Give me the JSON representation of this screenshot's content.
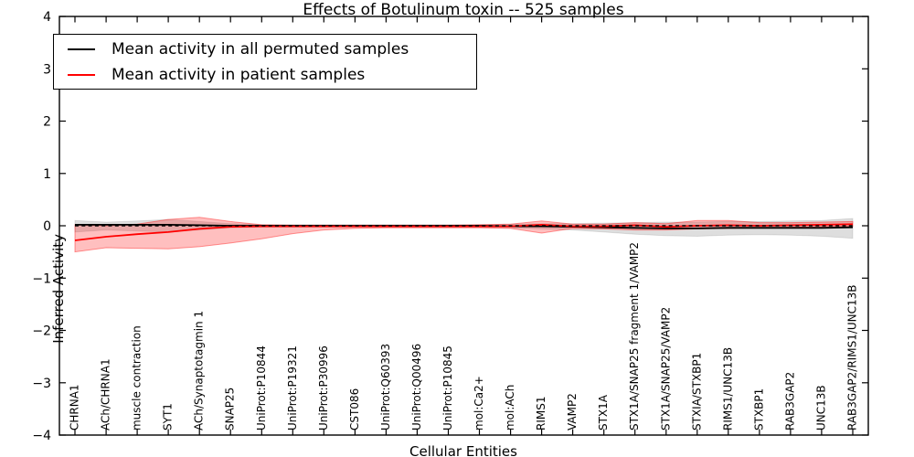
{
  "chart_data": {
    "type": "line",
    "title": "Effects of Botulinum toxin -- 525 samples",
    "xlabel": "Cellular Entities",
    "ylabel": "Inferred Activity",
    "ylim": [
      -4,
      4
    ],
    "yticks": [
      4,
      3,
      2,
      1,
      0,
      -1,
      -2,
      -3,
      -4
    ],
    "grid": false,
    "legend_position": "upper-left",
    "zero_reference_line": {
      "y": 0,
      "style": "dashed",
      "color": "#000000"
    },
    "categories": [
      "CHRNA1",
      "ACh/CHRNA1",
      "muscle contraction",
      "SYT1",
      "ACh/Synaptotagmin 1",
      "SNAP25",
      "UniProt:P10844",
      "UniProt:P19321",
      "UniProt:P30996",
      "CST086",
      "UniProt:Q60393",
      "UniProt:Q00496",
      "UniProt:P10845",
      "mol:Ca2+",
      "mol:ACh",
      "RIMS1",
      "VAMP2",
      "STX1A",
      "STX1A/SNAP25 fragment 1/VAMP2",
      "STX1A/SNAP25/VAMP2",
      "STXIA/STXBP1",
      "RIMS1/UNC13B",
      "STXBP1",
      "RAB3GAP2",
      "UNC13B",
      "RAB3GAP2/RIMS1/UNC13B"
    ],
    "series": [
      {
        "name": "Mean activity in all permuted samples",
        "color": "#000000",
        "band_fill": "rgba(0,0,0,0.13)",
        "band_stroke": "rgba(0,0,0,0.10)",
        "values": [
          0.02,
          0.02,
          0.02,
          0.02,
          0.01,
          0.0,
          0.0,
          0.0,
          0.0,
          0.0,
          0.0,
          0.0,
          0.0,
          0.0,
          -0.01,
          -0.01,
          -0.02,
          -0.03,
          -0.04,
          -0.05,
          -0.05,
          -0.04,
          -0.04,
          -0.04,
          -0.04,
          -0.03
        ],
        "band_upper": [
          0.1,
          0.07,
          0.09,
          0.12,
          0.08,
          0.04,
          0.02,
          0.02,
          0.02,
          0.02,
          0.02,
          0.02,
          0.02,
          0.02,
          0.03,
          0.04,
          0.04,
          0.05,
          0.06,
          0.07,
          0.07,
          0.08,
          0.08,
          0.09,
          0.1,
          0.14
        ],
        "band_lower": [
          -0.12,
          -0.08,
          -0.1,
          -0.12,
          -0.08,
          -0.04,
          -0.03,
          -0.03,
          -0.03,
          -0.03,
          -0.03,
          -0.03,
          -0.03,
          -0.03,
          -0.04,
          -0.06,
          -0.08,
          -0.12,
          -0.16,
          -0.19,
          -0.2,
          -0.18,
          -0.17,
          -0.18,
          -0.2,
          -0.24
        ]
      },
      {
        "name": "Mean activity in patient samples",
        "color": "#ff0000",
        "band_fill": "rgba(255,0,0,0.25)",
        "band_stroke": "rgba(255,0,0,0.40)",
        "values": [
          -0.28,
          -0.21,
          -0.16,
          -0.12,
          -0.06,
          -0.02,
          -0.01,
          -0.01,
          -0.01,
          -0.01,
          -0.01,
          -0.01,
          -0.01,
          -0.01,
          -0.01,
          0.02,
          -0.01,
          -0.01,
          0.01,
          -0.02,
          0.0,
          0.01,
          0.0,
          0.01,
          0.02,
          0.03
        ],
        "band_upper": [
          0.02,
          0.0,
          0.03,
          0.12,
          0.16,
          0.08,
          0.02,
          0.01,
          0.01,
          0.01,
          0.01,
          0.01,
          0.01,
          0.02,
          0.03,
          0.09,
          0.03,
          0.03,
          0.06,
          0.04,
          0.1,
          0.1,
          0.06,
          0.06,
          0.07,
          0.08
        ],
        "band_lower": [
          -0.5,
          -0.42,
          -0.43,
          -0.44,
          -0.4,
          -0.33,
          -0.25,
          -0.15,
          -0.08,
          -0.05,
          -0.04,
          -0.04,
          -0.04,
          -0.04,
          -0.05,
          -0.14,
          -0.05,
          -0.06,
          -0.08,
          -0.08,
          -0.06,
          -0.05,
          -0.04,
          -0.03,
          -0.02,
          -0.01
        ]
      }
    ]
  }
}
